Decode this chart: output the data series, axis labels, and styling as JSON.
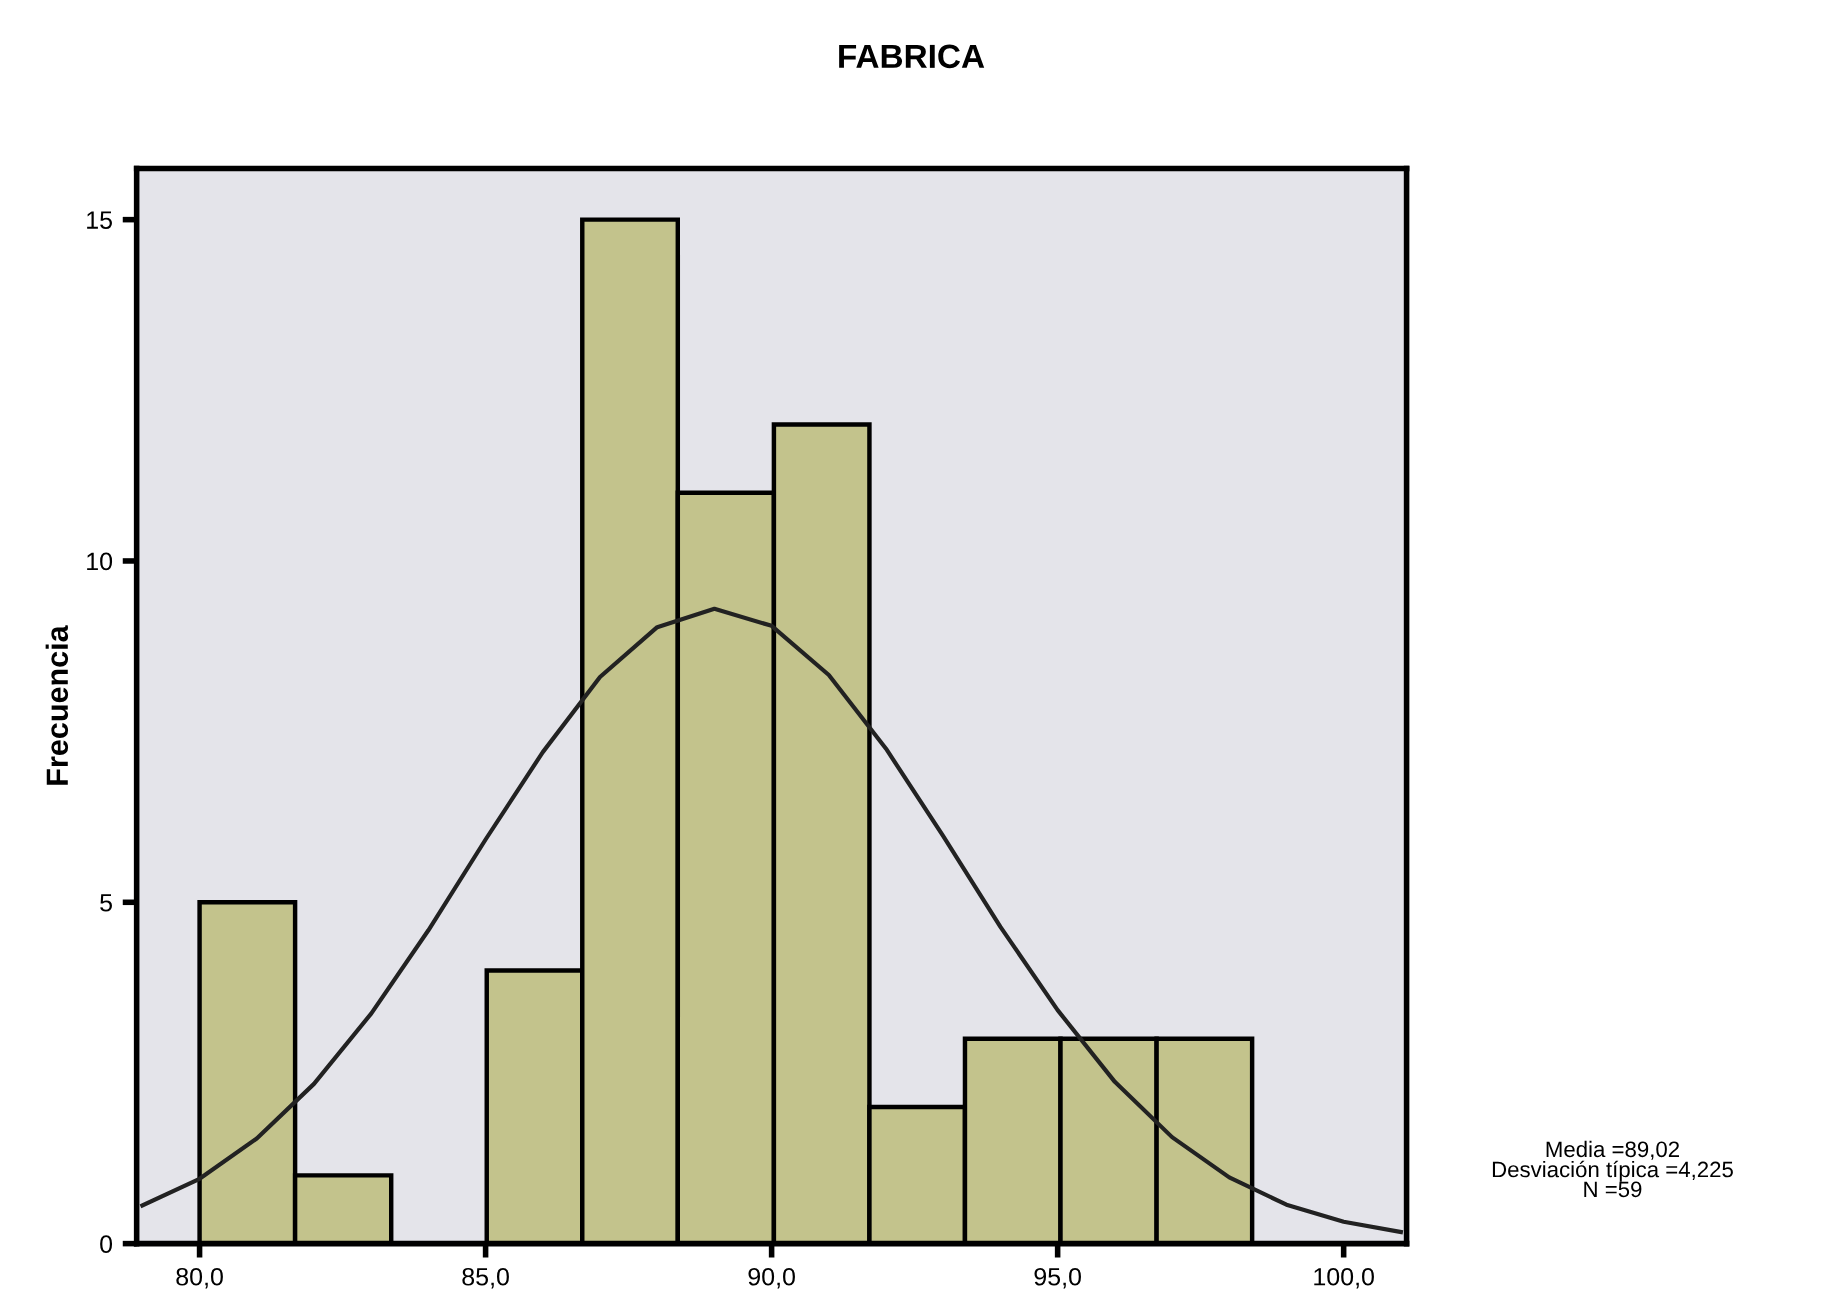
{
  "chart_data": [
    {
      "type": "histogram",
      "title": "FABRICA",
      "ylabel": "Frecuencia",
      "bins": [
        80.0,
        81.67,
        83.35,
        85.02,
        86.69,
        88.36,
        90.04,
        91.71,
        93.38,
        95.05,
        96.73,
        98.4
      ],
      "values": [
        5,
        1,
        0,
        4,
        15,
        11,
        12,
        2,
        3,
        3,
        3
      ],
      "color": "#c3c38c",
      "xlim": [
        78.9,
        101.1
      ],
      "xticks": [
        {
          "value": 80,
          "label": "80,0"
        },
        {
          "value": 85,
          "label": "85,0"
        },
        {
          "value": 90,
          "label": "90,0"
        },
        {
          "value": 95,
          "label": "95,0"
        },
        {
          "value": 100,
          "label": "100,0"
        }
      ],
      "ylim": [
        0,
        15.75
      ],
      "yticks": [
        0,
        5,
        10,
        15
      ],
      "grid": false,
      "series": [
        {
          "type": "line",
          "color": "#222222",
          "x": [
            79,
            80,
            81,
            82,
            83,
            84,
            85,
            86,
            87,
            88,
            89,
            90,
            91,
            92,
            93,
            94,
            95,
            96,
            97,
            98,
            99,
            100,
            101
          ],
          "values": [
            0.56,
            0.95,
            1.54,
            2.34,
            3.37,
            4.59,
            5.92,
            7.2,
            8.3,
            9.03,
            9.3,
            9.05,
            8.33,
            7.25,
            5.97,
            4.64,
            3.42,
            2.37,
            1.56,
            0.97,
            0.57,
            0.32,
            0.17
          ]
        }
      ],
      "annotations": [
        "Media =89,02",
        "Desviación típica =4,225",
        "N =59"
      ]
    }
  ]
}
